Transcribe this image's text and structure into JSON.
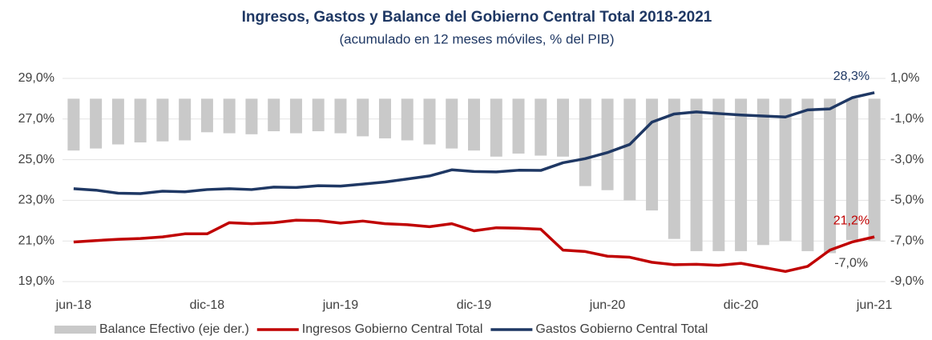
{
  "chart_data": {
    "type": "combo",
    "title": "Ingresos, Gastos y Balance del Gobierno Central Total 2018-2021",
    "subtitle": "(acumulado en 12 meses móviles, % del PIB)",
    "categories": [
      "jun-18",
      null,
      null,
      null,
      null,
      null,
      "dic-18",
      null,
      null,
      null,
      null,
      null,
      "jun-19",
      null,
      null,
      null,
      null,
      null,
      "dic-19",
      null,
      null,
      null,
      null,
      null,
      "jun-20",
      null,
      null,
      null,
      null,
      null,
      "dic-20",
      null,
      null,
      null,
      null,
      null,
      "jun-21"
    ],
    "series": [
      {
        "name": "Balance Efectivo (eje der.)",
        "type": "bar",
        "axis": "y2",
        "color": "#c9c9c9",
        "values": [
          -2.55,
          -2.45,
          -2.25,
          -2.15,
          -2.1,
          -2.05,
          -1.65,
          -1.7,
          -1.75,
          -1.6,
          -1.7,
          -1.6,
          -1.7,
          -1.85,
          -1.95,
          -2.05,
          -2.25,
          -2.45,
          -2.55,
          -2.85,
          -2.7,
          -2.8,
          -2.85,
          -4.3,
          -4.5,
          -5.0,
          -5.5,
          -6.9,
          -7.5,
          -7.5,
          -7.5,
          -7.2,
          -7.0,
          -7.5,
          -7.6,
          -6.95,
          -7.0
        ],
        "value_labels": [
          null,
          null,
          null,
          null,
          null,
          null,
          null,
          null,
          null,
          null,
          null,
          null,
          null,
          null,
          null,
          null,
          null,
          null,
          null,
          null,
          null,
          null,
          null,
          null,
          null,
          null,
          null,
          null,
          null,
          null,
          null,
          null,
          null,
          null,
          null,
          null,
          "-7,0%"
        ]
      },
      {
        "name": "Ingresos Gobierno Central Total",
        "type": "line",
        "color": "#c00000",
        "values": [
          20.95,
          21.02,
          21.08,
          21.12,
          21.2,
          21.35,
          21.35,
          21.9,
          21.85,
          21.9,
          22.02,
          22.0,
          21.88,
          21.98,
          21.85,
          21.8,
          21.7,
          21.85,
          21.5,
          21.65,
          21.63,
          21.58,
          20.55,
          20.48,
          20.25,
          20.2,
          19.95,
          19.83,
          19.85,
          19.8,
          19.9,
          19.7,
          19.5,
          19.75,
          20.55,
          20.95,
          21.2
        ],
        "value_labels": [
          null,
          null,
          null,
          null,
          null,
          null,
          null,
          null,
          null,
          null,
          null,
          null,
          null,
          null,
          null,
          null,
          null,
          null,
          null,
          null,
          null,
          null,
          null,
          null,
          null,
          null,
          null,
          null,
          null,
          null,
          null,
          null,
          null,
          null,
          null,
          null,
          "21,2%"
        ]
      },
      {
        "name": "Gastos Gobierno Central Total",
        "type": "line",
        "color": "#1f3864",
        "values": [
          23.57,
          23.5,
          23.35,
          23.33,
          23.45,
          23.42,
          23.53,
          23.57,
          23.53,
          23.65,
          23.63,
          23.72,
          23.7,
          23.8,
          23.9,
          24.05,
          24.2,
          24.5,
          24.42,
          24.4,
          24.48,
          24.47,
          24.85,
          25.05,
          25.35,
          25.75,
          26.85,
          27.25,
          27.35,
          27.27,
          27.2,
          27.15,
          27.1,
          27.45,
          27.5,
          28.05,
          28.3
        ],
        "value_labels": [
          null,
          null,
          null,
          null,
          null,
          null,
          null,
          null,
          null,
          null,
          null,
          null,
          null,
          null,
          null,
          null,
          null,
          null,
          null,
          null,
          null,
          null,
          null,
          null,
          null,
          null,
          null,
          null,
          null,
          null,
          null,
          null,
          null,
          null,
          null,
          null,
          "28,3%"
        ]
      }
    ],
    "ylim": [
      19,
      29
    ],
    "yticks": [
      {
        "value": 19,
        "label": "19,0%"
      },
      {
        "value": 21,
        "label": "21,0%"
      },
      {
        "value": 23,
        "label": "23,0%"
      },
      {
        "value": 25,
        "label": "25,0%"
      },
      {
        "value": 27,
        "label": "27,0%"
      },
      {
        "value": 29,
        "label": "29,0%"
      }
    ],
    "y2lim": [
      -9,
      1
    ],
    "y2ticks": [
      {
        "value": -9,
        "label": "-9,0%"
      },
      {
        "value": -7,
        "label": "-7,0%"
      },
      {
        "value": -5,
        "label": "-5,0%"
      },
      {
        "value": -3,
        "label": "-3,0%"
      },
      {
        "value": -1,
        "label": "-1,0%"
      },
      {
        "value": 1,
        "label": "1,0%"
      }
    ],
    "grid": true,
    "legend": "bottom"
  }
}
